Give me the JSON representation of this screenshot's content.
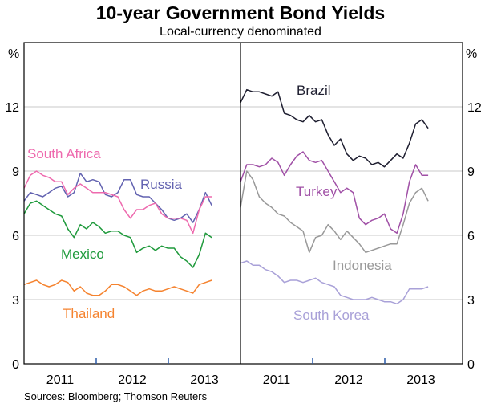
{
  "chart_data": [
    {
      "type": "line",
      "title": "10-year Government Bond Yields",
      "subtitle": "Local-currency denominated",
      "ylabel": "%",
      "ylim": [
        0,
        15
      ],
      "yticks": [
        "0",
        "3",
        "6",
        "9",
        "12"
      ],
      "xlim": [
        2011,
        2014
      ],
      "xticks": [
        "2011",
        "2012",
        "2013"
      ],
      "x_start": 2011.0,
      "x_step": 0.0867,
      "grid": true,
      "series": [
        {
          "name": "South Africa",
          "color": "#ee6aae",
          "values": [
            8.2,
            8.8,
            9.0,
            8.8,
            8.7,
            8.5,
            8.5,
            7.9,
            8.2,
            8.4,
            8.2,
            8.0,
            8.0,
            8.0,
            7.9,
            7.8,
            7.2,
            6.8,
            7.2,
            7.2,
            7.4,
            7.5,
            7.0,
            6.8,
            6.8,
            6.8,
            6.7,
            6.1,
            7.2,
            7.8,
            7.8
          ]
        },
        {
          "name": "Russia",
          "color": "#6262b0",
          "values": [
            7.6,
            8.0,
            7.9,
            7.8,
            8.0,
            8.2,
            8.3,
            7.8,
            8.0,
            8.9,
            8.5,
            8.6,
            8.5,
            7.9,
            7.8,
            8.0,
            8.6,
            8.6,
            7.9,
            7.8,
            7.8,
            7.5,
            7.2,
            6.8,
            6.7,
            6.8,
            7.0,
            6.6,
            7.2,
            8.0,
            7.4
          ]
        },
        {
          "name": "Mexico",
          "color": "#1f9a3c",
          "values": [
            7.0,
            7.5,
            7.6,
            7.4,
            7.2,
            7.0,
            6.9,
            6.3,
            5.9,
            6.5,
            6.3,
            6.6,
            6.4,
            6.1,
            6.2,
            6.2,
            6.0,
            5.9,
            5.2,
            5.4,
            5.5,
            5.3,
            5.5,
            5.4,
            5.4,
            5.0,
            4.8,
            4.5,
            5.1,
            6.1,
            5.9
          ]
        },
        {
          "name": "Thailand",
          "color": "#f5832f",
          "values": [
            3.7,
            3.8,
            3.9,
            3.7,
            3.6,
            3.7,
            3.9,
            3.8,
            3.4,
            3.6,
            3.3,
            3.2,
            3.2,
            3.4,
            3.7,
            3.7,
            3.6,
            3.4,
            3.2,
            3.4,
            3.5,
            3.4,
            3.4,
            3.5,
            3.6,
            3.5,
            3.4,
            3.3,
            3.7,
            3.8,
            3.9
          ]
        }
      ]
    },
    {
      "type": "line",
      "ylabel": "%",
      "ylim": [
        0,
        15
      ],
      "yticks": [
        "0",
        "3",
        "6",
        "9",
        "12"
      ],
      "xlim": [
        2011,
        2014
      ],
      "xticks": [
        "2011",
        "2012",
        "2013"
      ],
      "x_start": 2011.0,
      "x_step": 0.0867,
      "grid": true,
      "series": [
        {
          "name": "Brazil",
          "color": "#1e1e30",
          "values": [
            12.2,
            12.8,
            12.7,
            12.7,
            12.6,
            12.5,
            12.7,
            11.7,
            11.6,
            11.4,
            11.3,
            11.6,
            11.3,
            11.4,
            10.7,
            10.2,
            10.5,
            9.8,
            9.5,
            9.7,
            9.6,
            9.3,
            9.4,
            9.2,
            9.5,
            9.8,
            9.6,
            10.3,
            11.2,
            11.4,
            11.0
          ]
        },
        {
          "name": "Turkey",
          "color": "#a050a6",
          "values": [
            8.5,
            9.3,
            9.3,
            9.2,
            9.3,
            9.6,
            9.4,
            8.8,
            9.3,
            9.7,
            9.9,
            9.5,
            9.4,
            9.5,
            9.0,
            8.5,
            8.0,
            8.2,
            8.0,
            6.8,
            6.5,
            6.7,
            6.8,
            7.0,
            6.3,
            6.1,
            7.0,
            8.5,
            9.3,
            8.8,
            8.8
          ]
        },
        {
          "name": "Indonesia",
          "color": "#999999",
          "values": [
            7.3,
            9.0,
            8.6,
            7.8,
            7.5,
            7.3,
            7.0,
            6.9,
            6.6,
            6.4,
            6.2,
            5.2,
            5.9,
            6.0,
            6.5,
            6.2,
            5.8,
            6.2,
            5.9,
            5.6,
            5.2,
            5.3,
            5.4,
            5.5,
            5.6,
            5.6,
            6.5,
            7.5,
            8.0,
            8.2,
            7.6
          ]
        },
        {
          "name": "South Korea",
          "color": "#a9a1d8",
          "values": [
            4.7,
            4.8,
            4.6,
            4.6,
            4.4,
            4.3,
            4.1,
            3.8,
            3.9,
            3.9,
            3.8,
            3.9,
            4.0,
            3.8,
            3.7,
            3.6,
            3.2,
            3.1,
            3.0,
            3.0,
            3.0,
            3.1,
            3.0,
            2.9,
            2.9,
            2.8,
            3.0,
            3.5,
            3.5,
            3.5,
            3.6
          ]
        }
      ]
    }
  ],
  "source": "Sources: Bloomberg; Thomson Reuters"
}
